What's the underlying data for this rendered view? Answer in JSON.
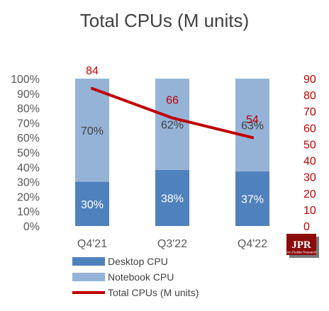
{
  "chart_data": {
    "type": "bar",
    "stacked": true,
    "percent_stacked": true,
    "title": "Total CPUs (M units)",
    "categories": [
      "Q4'21",
      "Q3'22",
      "Q4'22"
    ],
    "series": [
      {
        "name": "Desktop CPU",
        "kind": "bar",
        "axis": "left",
        "color": "#4F81BD",
        "values": [
          30,
          38,
          37
        ],
        "labels": [
          "30%",
          "38%",
          "37%"
        ],
        "label_color": "#ffffff"
      },
      {
        "name": "Notebook CPU",
        "kind": "bar",
        "axis": "left",
        "color": "#95B3D7",
        "values": [
          70,
          62,
          63
        ],
        "labels": [
          "70%",
          "62%",
          "63%"
        ],
        "label_color": "#404040"
      },
      {
        "name": "Total CPUs (M units)",
        "kind": "line",
        "axis": "right",
        "color": "#C00000",
        "values": [
          84,
          66,
          54
        ],
        "labels": [
          "84",
          "66",
          "54"
        ],
        "label_color": "#C00000"
      }
    ],
    "y_left": {
      "ylim": [
        0,
        100
      ],
      "ticks": [
        "0%",
        "10%",
        "20%",
        "30%",
        "40%",
        "50%",
        "60%",
        "70%",
        "80%",
        "90%",
        "100%"
      ]
    },
    "y_right": {
      "ylim": [
        0,
        90
      ],
      "color": "#C00000",
      "ticks": [
        "0",
        "10",
        "20",
        "30",
        "40",
        "50",
        "60",
        "70",
        "80",
        "90"
      ]
    },
    "grid": false,
    "legend": "bottom"
  },
  "logo": {
    "text": "JPR",
    "subtext": "Jon Peddie Research"
  }
}
